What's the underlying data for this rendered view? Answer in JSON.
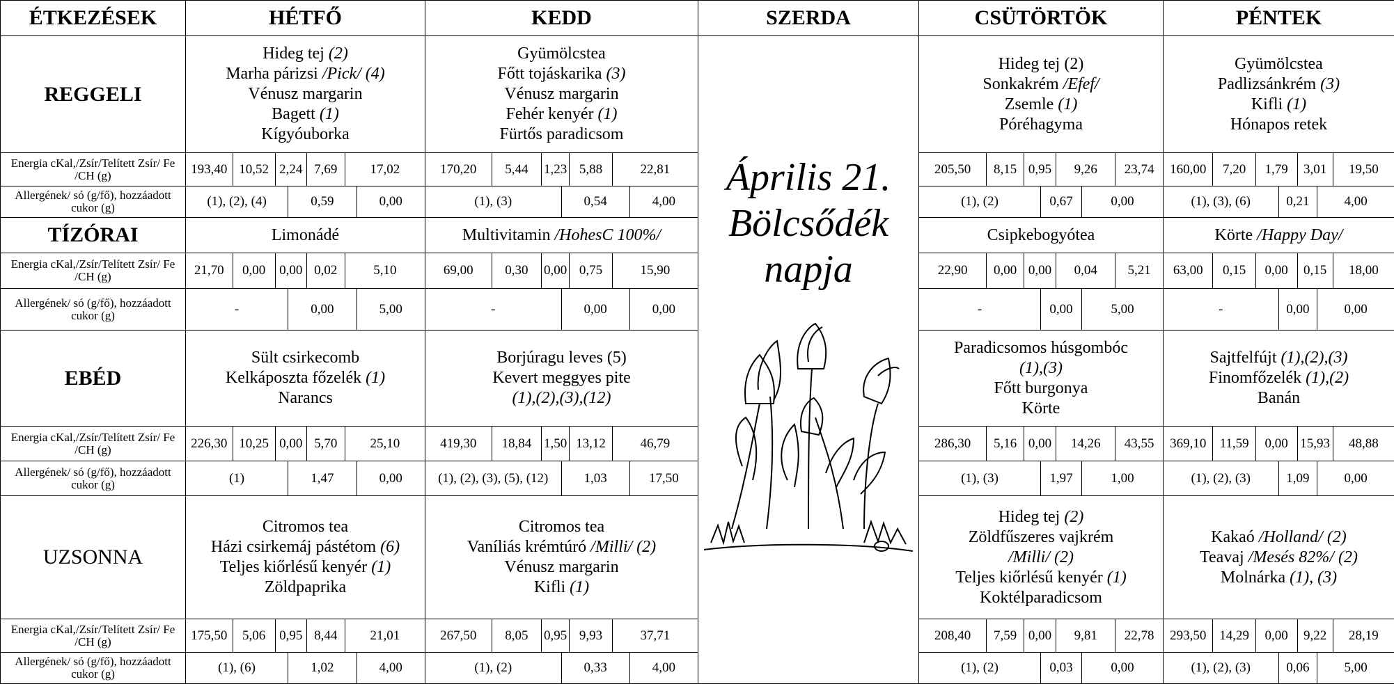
{
  "header": [
    "ÉTKEZÉSEK",
    "HÉTFŐ",
    "KEDD",
    "SZERDA",
    "CSÜTÖRTÖK",
    "PÉNTEK"
  ],
  "special_day": {
    "title": "Április 21.",
    "subtitle": "Bölcsődék napja"
  },
  "meals": [
    {
      "name": "REGGELI",
      "menu": [
        [
          {
            "text": "Hideg tej",
            "italic": "(2)"
          },
          {
            "text": "Marha párizsi",
            "italic": "/Pick/ (4)"
          },
          {
            "text": "Vénusz margarin"
          },
          {
            "text": "Bagett",
            "italic": "(1)"
          },
          {
            "text": "Kígyóuborka"
          }
        ],
        [
          {
            "text": "Gyümölcstea"
          },
          {
            "text": "Főtt tojáskarika",
            "italic": "(3)"
          },
          {
            "text": "Vénusz margarin"
          },
          {
            "text": "Fehér kenyér",
            "italic": "(1)"
          },
          {
            "text": "Fürtős paradicsom"
          }
        ],
        [
          {
            "text": "Hideg tej (2)"
          },
          {
            "text": "Sonkakrém",
            "italic": "/Efef/"
          },
          {
            "text": "Zsemle",
            "italic": "(1)"
          },
          {
            "text": "Póréhagyma"
          }
        ],
        [
          {
            "text": "Gyümölcstea"
          },
          {
            "text": "Padlizsánkrém",
            "italic": "(3)"
          },
          {
            "text": "Kifli",
            "italic": "(1)"
          },
          {
            "text": "Hónapos retek"
          }
        ]
      ],
      "energy_label": "Energia cKal,/Zsír/Telített Zsír/ Fe /CH (g)",
      "energy": [
        [
          "193,40",
          "10,52",
          "2,24",
          "7,69",
          "17,02"
        ],
        [
          "170,20",
          "5,44",
          "1,23",
          "5,88",
          "22,81"
        ],
        [
          "205,50",
          "8,15",
          "0,95",
          "9,26",
          "23,74"
        ],
        [
          "160,00",
          "7,20",
          "1,79",
          "3,01",
          "19,50"
        ]
      ],
      "allergen_label": "Allergének/ só (g/fő), hozzáadott cukor (g)",
      "allergens": [
        [
          "(1), (2), (4)",
          "0,59",
          "0,00"
        ],
        [
          "(1), (3)",
          "0,54",
          "4,00"
        ],
        [
          "(1), (2)",
          "0,67",
          "0,00"
        ],
        [
          "(1), (3), (6)",
          "0,21",
          "4,00"
        ]
      ]
    },
    {
      "name": "TÍZÓRAI",
      "menu": [
        [
          {
            "text": "Limonádé"
          }
        ],
        [
          {
            "text": "Multivitamin",
            "italic": "/HohesC 100%/"
          }
        ],
        [
          {
            "text": "Csipkebogyótea"
          }
        ],
        [
          {
            "text": "Körte",
            "italic": "/Happy Day/"
          }
        ]
      ],
      "energy_label": "Energia cKal,/Zsír/Telített Zsír/ Fe /CH (g)",
      "energy": [
        [
          "21,70",
          "0,00",
          "0,00",
          "0,02",
          "5,10"
        ],
        [
          "69,00",
          "0,30",
          "0,00",
          "0,75",
          "15,90"
        ],
        [
          "22,90",
          "0,00",
          "0,00",
          "0,04",
          "5,21"
        ],
        [
          "63,00",
          "0,15",
          "0,00",
          "0,15",
          "18,00"
        ]
      ],
      "allergen_label": "Allergének/ só (g/fő), hozzáadott cukor (g)",
      "allergens": [
        [
          "-",
          "0,00",
          "5,00"
        ],
        [
          "-",
          "0,00",
          "0,00"
        ],
        [
          "-",
          "0,00",
          "5,00"
        ],
        [
          "-",
          "0,00",
          "0,00"
        ]
      ]
    },
    {
      "name": "EBÉD",
      "menu": [
        [
          {
            "text": "Sült csirkecomb"
          },
          {
            "text": "Kelkáposzta főzelék",
            "italic": "(1)"
          },
          {
            "text": "Narancs"
          }
        ],
        [
          {
            "text": "Borjúragu leves (5)"
          },
          {
            "text": "Kevert meggyes pite"
          },
          {
            "italic": "(1),(2),(3),(12)"
          }
        ],
        [
          {
            "text": "Paradicsomos húsgombóc"
          },
          {
            "italic": "(1),(3)"
          },
          {
            "text": "Főtt burgonya"
          },
          {
            "text": "Körte"
          }
        ],
        [
          {
            "text": "Sajtfelfújt",
            "italic": "(1),(2),(3)"
          },
          {
            "text": "Finomfőzelék",
            "italic": "(1),(2)"
          },
          {
            "text": "Banán"
          }
        ]
      ],
      "energy_label": "Energia cKal,/Zsír/Telített Zsír/ Fe /CH (g)",
      "energy": [
        [
          "226,30",
          "10,25",
          "0,00",
          "5,70",
          "25,10"
        ],
        [
          "419,30",
          "18,84",
          "1,50",
          "13,12",
          "46,79"
        ],
        [
          "286,30",
          "5,16",
          "0,00",
          "14,26",
          "43,55"
        ],
        [
          "369,10",
          "11,59",
          "0,00",
          "15,93",
          "48,88"
        ]
      ],
      "allergen_label": "Allergének/ só (g/fő), hozzáadott cukor (g)",
      "allergens": [
        [
          "(1)",
          "1,47",
          "0,00"
        ],
        [
          "(1), (2), (3), (5), (12)",
          "1,03",
          "17,50"
        ],
        [
          "(1), (3)",
          "1,97",
          "1,00"
        ],
        [
          "(1), (2), (3)",
          "1,09",
          "0,00"
        ]
      ]
    },
    {
      "name": "UZSONNA",
      "menu": [
        [
          {
            "text": "Citromos tea"
          },
          {
            "text": "Házi csirkemáj pástétom",
            "italic": "(6)"
          },
          {
            "text": "Teljes kiőrlésű kenyér",
            "italic": "(1)"
          },
          {
            "text": "Zöldpaprika"
          }
        ],
        [
          {
            "text": "Citromos tea"
          },
          {
            "text": "Vaníliás krémtúró",
            "italic": "/Milli/ (2)"
          },
          {
            "text": "Vénusz margarin"
          },
          {
            "text": "Kifli",
            "italic": "(1)"
          }
        ],
        [
          {
            "text": "Hideg tej",
            "italic": "(2)"
          },
          {
            "text": "Zöldfűszeres vajkrém"
          },
          {
            "italic": "/Milli/ (2)"
          },
          {
            "text": "Teljes kiőrlésű kenyér",
            "italic": "(1)"
          },
          {
            "text": "Koktélparadicsom"
          }
        ],
        [
          {
            "text": "Kakaó",
            "italic": "/Holland/ (2)"
          },
          {
            "text": "Teavaj",
            "italic": "/Mesés 82%/ (2)"
          },
          {
            "text": "Molnárka",
            "italic": "(1), (3)"
          }
        ]
      ],
      "energy_label": "Energia cKal,/Zsír/Telített Zsír/ Fe /CH (g)",
      "energy": [
        [
          "175,50",
          "5,06",
          "0,95",
          "8,44",
          "21,01"
        ],
        [
          "267,50",
          "8,05",
          "0,95",
          "9,93",
          "37,71"
        ],
        [
          "208,40",
          "7,59",
          "0,00",
          "9,81",
          "22,78"
        ],
        [
          "293,50",
          "14,29",
          "0,00",
          "9,22",
          "28,19"
        ]
      ],
      "allergen_label": "Allergének/ só (g/fő), hozzáadott cukor (g)",
      "allergens": [
        [
          "(1), (6)",
          "1,02",
          "4,00"
        ],
        [
          "(1), (2)",
          "0,33",
          "4,00"
        ],
        [
          "(1), (2)",
          "0,03",
          "0,00"
        ],
        [
          "(1), (2), (3)",
          "0,06",
          "5,00"
        ]
      ]
    }
  ]
}
